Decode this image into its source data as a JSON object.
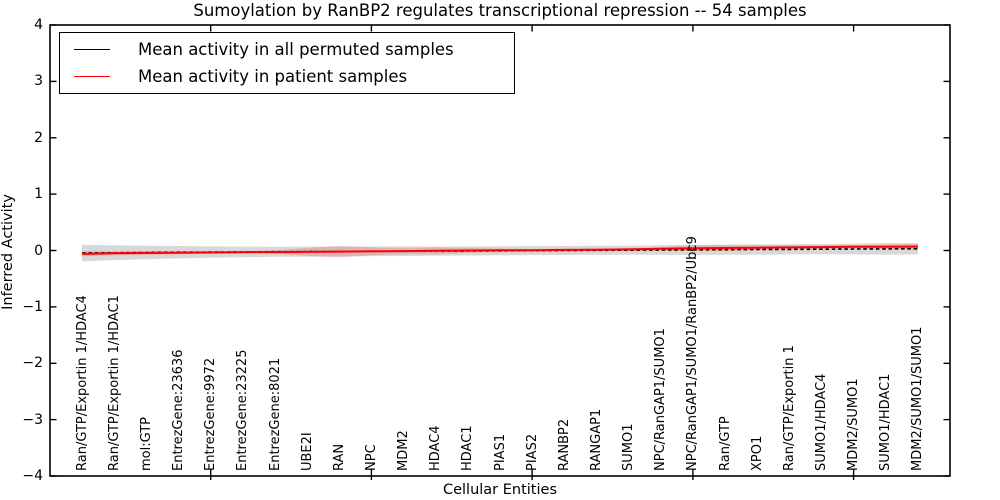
{
  "chart_data": {
    "type": "line",
    "title": "Sumoylation by RanBP2 regulates transcriptional repression -- 54 samples",
    "xlabel": "Cellular Entities",
    "ylabel": "Inferred Activity",
    "ylim": [
      -4,
      4
    ],
    "yticks": [
      4,
      3,
      2,
      1,
      0,
      -1,
      -2,
      -3,
      -4
    ],
    "ytick_labels": [
      "4",
      "3",
      "2",
      "1",
      "0",
      "−1",
      "−2",
      "−3",
      "−4"
    ],
    "xtick_major_columns": [
      5,
      10,
      15,
      20,
      25
    ],
    "legend_position": "upper left",
    "grid": false,
    "categories": [
      "Ran/GTP/Exportin 1/HDAC4",
      "Ran/GTP/Exportin 1/HDAC1",
      "mol:GTP",
      "EntrezGene:23636",
      "EntrezGene:9972",
      "EntrezGene:23225",
      "EntrezGene:8021",
      "UBE2I",
      "RAN",
      "NPC",
      "MDM2",
      "HDAC4",
      "HDAC1",
      "PIAS1",
      "PIAS2",
      "RANBP2",
      "RANGAP1",
      "SUMO1",
      "NPC/RanGAP1/SUMO1",
      "NPC/RanGAP1/SUMO1/RanBP2/Ubc9",
      "Ran/GTP",
      "XPO1",
      "Ran/GTP/Exportin 1",
      "SUMO1/HDAC4",
      "MDM2/SUMO1",
      "SUMO1/HDAC1",
      "MDM2/SUMO1/SUMO1"
    ],
    "series": [
      {
        "name": "Mean activity in all permuted samples",
        "color": "#000000",
        "line_style": "dashed",
        "values": [
          -0.045,
          -0.04,
          -0.035,
          -0.03,
          -0.028,
          -0.025,
          -0.022,
          -0.02,
          -0.018,
          -0.015,
          -0.012,
          -0.01,
          -0.008,
          -0.005,
          -0.002,
          0.0,
          0.003,
          0.005,
          0.008,
          0.012,
          0.015,
          0.018,
          0.02,
          0.023,
          0.026,
          0.028,
          0.03
        ]
      },
      {
        "name": "Mean activity in patient samples",
        "color": "#ff0000",
        "line_style": "solid",
        "values": [
          -0.06,
          -0.05,
          -0.045,
          -0.04,
          -0.035,
          -0.03,
          -0.028,
          -0.025,
          -0.02,
          -0.015,
          -0.01,
          -0.005,
          0.0,
          0.003,
          0.006,
          0.01,
          0.015,
          0.02,
          0.03,
          0.04,
          0.045,
          0.05,
          0.055,
          0.06,
          0.065,
          0.068,
          0.07
        ]
      }
    ],
    "bands": [
      {
        "name": "permuted samples spread",
        "color": "#999999",
        "opacity": 0.38,
        "center_series": 0,
        "half_widths": [
          0.15,
          0.13,
          0.12,
          0.11,
          0.1,
          0.095,
          0.09,
          0.09,
          0.09,
          0.085,
          0.085,
          0.08,
          0.08,
          0.08,
          0.08,
          0.08,
          0.08,
          0.08,
          0.085,
          0.09,
          0.09,
          0.09,
          0.09,
          0.09,
          0.095,
          0.1,
          0.1
        ]
      },
      {
        "name": "patient samples spread",
        "color": "#ff0000",
        "opacity": 0.17,
        "center_series": 1,
        "half_widths": [
          0.045,
          0.035,
          0.03,
          0.025,
          0.02,
          0.02,
          0.03,
          0.07,
          0.1,
          0.07,
          0.05,
          0.06,
          0.045,
          0.03,
          0.02,
          0.02,
          0.02,
          0.025,
          0.03,
          0.05,
          0.05,
          0.04,
          0.035,
          0.03,
          0.03,
          0.04,
          0.05
        ]
      }
    ]
  }
}
